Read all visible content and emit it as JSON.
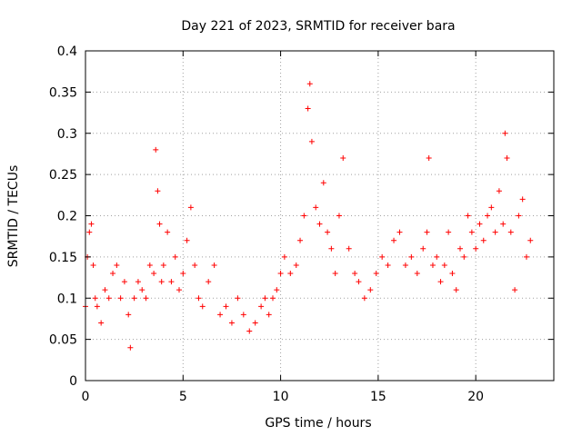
{
  "chart_data": {
    "type": "scatter",
    "title": "Day 221 of 2023, SRMTID for receiver bara",
    "xlabel": "GPS time / hours",
    "ylabel": "SRMTID / TECUs",
    "xlim": [
      0,
      24
    ],
    "ylim": [
      0,
      0.4
    ],
    "x_ticks": [
      0,
      5,
      10,
      15,
      20
    ],
    "x_tick_labels": [
      "0",
      "5",
      "10",
      "15",
      "20"
    ],
    "y_ticks": [
      0,
      0.05,
      0.1,
      0.15,
      0.2,
      0.25,
      0.3,
      0.35,
      0.4
    ],
    "y_tick_labels": [
      "0",
      "0.05",
      "0.1",
      "0.15",
      "0.2",
      "0.25",
      "0.3",
      "0.35",
      "0.4"
    ],
    "grid": true,
    "marker": "+",
    "color": "#ff0000",
    "series": [
      {
        "name": "SRMTID",
        "x": [
          0.0,
          0.1,
          0.2,
          0.3,
          0.4,
          0.5,
          0.6,
          0.8,
          1.0,
          1.2,
          1.4,
          1.6,
          1.8,
          2.0,
          2.2,
          2.3,
          2.5,
          2.7,
          2.9,
          3.1,
          3.3,
          3.5,
          3.6,
          3.7,
          3.8,
          3.9,
          4.0,
          4.2,
          4.4,
          4.6,
          4.8,
          5.0,
          5.2,
          5.4,
          5.6,
          5.8,
          6.0,
          6.3,
          6.6,
          6.9,
          7.2,
          7.5,
          7.8,
          8.1,
          8.4,
          8.7,
          9.0,
          9.2,
          9.4,
          9.6,
          9.8,
          10.0,
          10.2,
          10.5,
          10.8,
          11.0,
          11.2,
          11.4,
          11.5,
          11.6,
          11.8,
          12.0,
          12.2,
          12.4,
          12.6,
          12.8,
          13.0,
          13.2,
          13.5,
          13.8,
          14.0,
          14.3,
          14.6,
          14.9,
          15.2,
          15.5,
          15.8,
          16.1,
          16.4,
          16.7,
          17.0,
          17.3,
          17.5,
          17.6,
          17.8,
          18.0,
          18.2,
          18.4,
          18.6,
          18.8,
          19.0,
          19.2,
          19.4,
          19.6,
          19.8,
          20.0,
          20.2,
          20.4,
          20.6,
          20.8,
          21.0,
          21.2,
          21.4,
          21.5,
          21.6,
          21.8,
          22.0,
          22.2,
          22.4,
          22.6,
          22.8
        ],
        "y": [
          0.09,
          0.15,
          0.18,
          0.19,
          0.14,
          0.1,
          0.09,
          0.07,
          0.11,
          0.1,
          0.13,
          0.14,
          0.1,
          0.12,
          0.08,
          0.04,
          0.1,
          0.12,
          0.11,
          0.1,
          0.14,
          0.13,
          0.28,
          0.23,
          0.19,
          0.12,
          0.14,
          0.18,
          0.12,
          0.15,
          0.11,
          0.13,
          0.17,
          0.21,
          0.14,
          0.1,
          0.09,
          0.12,
          0.14,
          0.08,
          0.09,
          0.07,
          0.1,
          0.08,
          0.06,
          0.07,
          0.09,
          0.1,
          0.08,
          0.1,
          0.11,
          0.13,
          0.15,
          0.13,
          0.14,
          0.17,
          0.2,
          0.33,
          0.36,
          0.29,
          0.21,
          0.19,
          0.24,
          0.18,
          0.16,
          0.13,
          0.2,
          0.27,
          0.16,
          0.13,
          0.12,
          0.1,
          0.11,
          0.13,
          0.15,
          0.14,
          0.17,
          0.18,
          0.14,
          0.15,
          0.13,
          0.16,
          0.18,
          0.27,
          0.14,
          0.15,
          0.12,
          0.14,
          0.18,
          0.13,
          0.11,
          0.16,
          0.15,
          0.2,
          0.18,
          0.16,
          0.19,
          0.17,
          0.2,
          0.21,
          0.18,
          0.23,
          0.19,
          0.3,
          0.27,
          0.18,
          0.11,
          0.2,
          0.22,
          0.15,
          0.17
        ]
      }
    ]
  }
}
